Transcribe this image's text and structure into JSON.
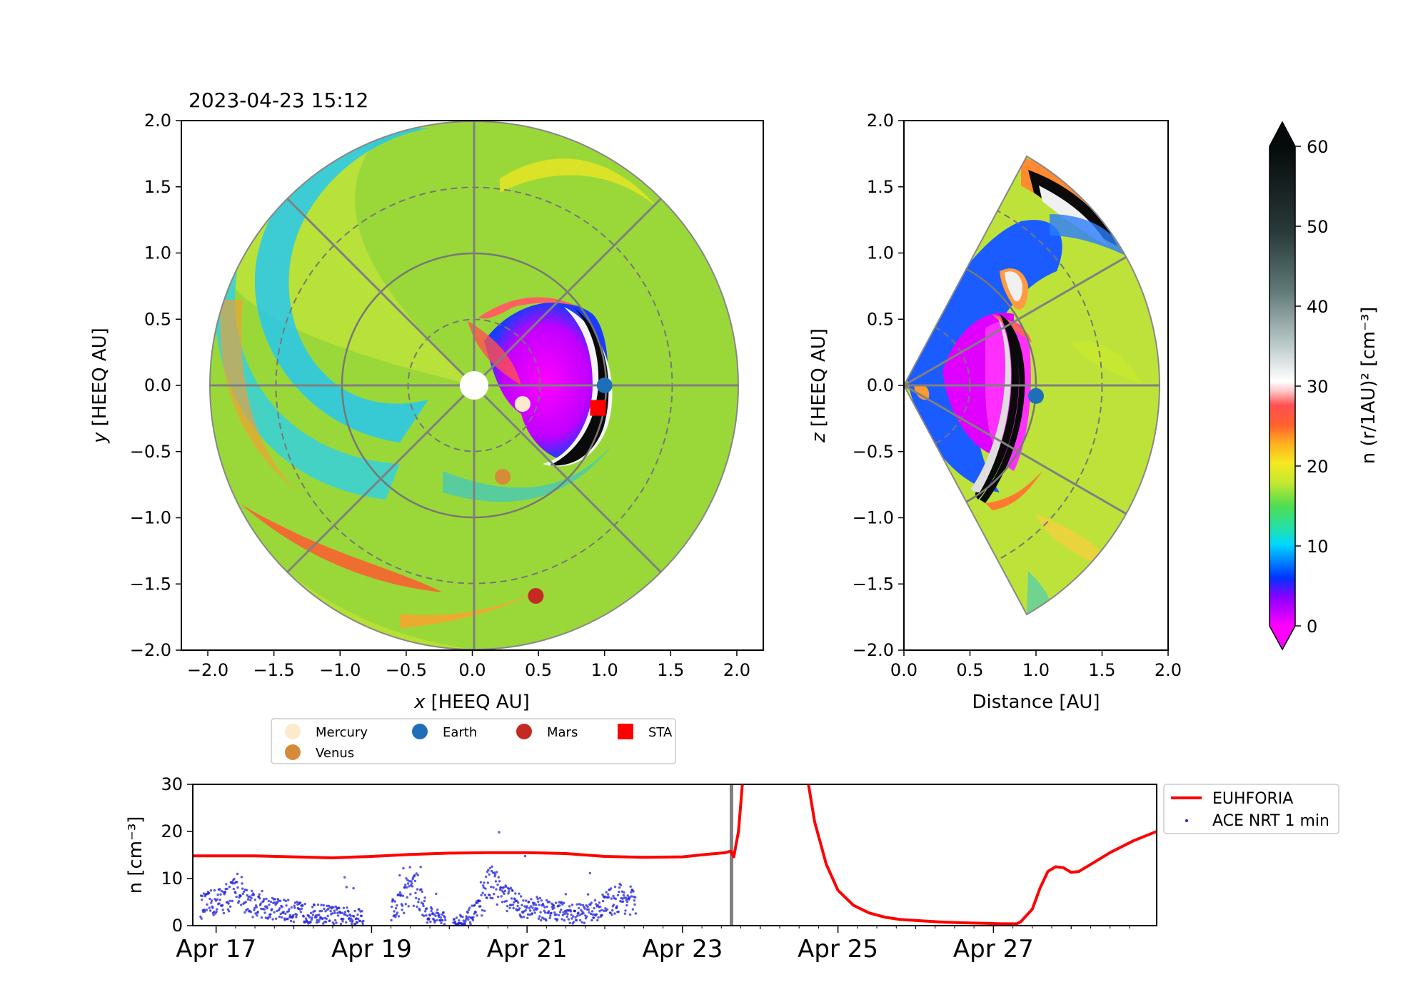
{
  "timestamp": "2023-04-23 15:12",
  "ecliptic_panel": {
    "xlabel_var": "x",
    "xlabel_unit": "[HEEQ AU]",
    "ylabel_var": "y",
    "ylabel_unit": "[HEEQ AU]",
    "xticks": [
      "−2.0",
      "−1.5",
      "−1.0",
      "−0.5",
      "0.0",
      "0.5",
      "1.0",
      "1.5",
      "2.0"
    ],
    "yticks": [
      "2.0",
      "1.5",
      "1.0",
      "0.5",
      "0.0",
      "−0.5",
      "−1.0",
      "−1.5",
      "−2.0"
    ]
  },
  "meridional_panel": {
    "xlabel": "Distance [AU]",
    "ylabel_var": "z",
    "ylabel_unit": "[HEEQ AU]",
    "xticks": [
      "0.0",
      "0.5",
      "1.0",
      "1.5",
      "2.0"
    ],
    "yticks": [
      "2.0",
      "1.5",
      "1.0",
      "0.5",
      "0.0",
      "−0.5",
      "−1.0",
      "−1.5",
      "−2.0"
    ]
  },
  "colorbar": {
    "label": "n (r/1AU)²  [cm⁻³]",
    "ticks": [
      "60",
      "50",
      "40",
      "30",
      "20",
      "10",
      "0"
    ]
  },
  "legend_bodies": {
    "items": [
      {
        "label": "Mercury",
        "color": "#fbeacb",
        "marker": "circle"
      },
      {
        "label": "Earth",
        "color": "#1f6fb8",
        "marker": "circle"
      },
      {
        "label": "Mars",
        "color": "#c42a22",
        "marker": "circle"
      },
      {
        "label": "STA",
        "color": "#ff0000",
        "marker": "square"
      },
      {
        "label": "Venus",
        "color": "#d58b3a",
        "marker": "circle"
      }
    ]
  },
  "timeseries": {
    "ylabel": "n [cm⁻³]",
    "yticks": [
      "30",
      "20",
      "10",
      "0"
    ],
    "xticks": [
      "Apr 17",
      "Apr 19",
      "Apr 21",
      "Apr 23",
      "Apr 25",
      "Apr 27"
    ],
    "legend": [
      {
        "label": "EUHFORIA",
        "color": "#ff0000"
      },
      {
        "label": "ACE NRT 1 min",
        "color": "#2020dd"
      }
    ]
  },
  "chart_data": [
    {
      "type": "heatmap",
      "description_panel": "ecliptic",
      "xlim": [
        -2.2,
        2.2
      ],
      "ylim": [
        -2.0,
        2.0
      ],
      "bodies": [
        {
          "name": "Mercury",
          "x": 0.38,
          "y": -0.14
        },
        {
          "name": "Venus",
          "x": 0.23,
          "y": -0.69
        },
        {
          "name": "Earth",
          "x": 1.0,
          "y": 0.0
        },
        {
          "name": "Mars",
          "x": 0.48,
          "y": -1.59
        },
        {
          "name": "STA",
          "x": 0.95,
          "y": -0.17
        }
      ]
    },
    {
      "type": "heatmap",
      "description_panel": "meridional",
      "xlim": [
        0.0,
        2.0
      ],
      "ylim": [
        -2.0,
        2.0
      ],
      "bodies": [
        {
          "name": "Earth",
          "x": 1.0,
          "y": -0.08
        }
      ]
    },
    {
      "type": "line",
      "description_panel": "timeseries",
      "x_unit": "days since Apr 17 00:00",
      "xlim": [
        -0.3,
        12.1
      ],
      "ylim": [
        0,
        30
      ],
      "time_marker": 6.63,
      "series": [
        {
          "name": "EUHFORIA",
          "x": [
            -0.3,
            0.5,
            1.0,
            1.5,
            2.0,
            2.5,
            3.0,
            3.5,
            4.0,
            4.5,
            5.0,
            5.5,
            6.0,
            6.3,
            6.55,
            6.62,
            6.66,
            6.72,
            6.78,
            7.6,
            7.7,
            7.85,
            8.0,
            8.2,
            8.4,
            8.6,
            8.8,
            9.0,
            9.3,
            9.6,
            9.9,
            10.1,
            10.3,
            10.35,
            10.5,
            10.6,
            10.7,
            10.8,
            10.9,
            11.0,
            11.1,
            11.3,
            11.5,
            11.8,
            12.1
          ],
          "values": [
            14.8,
            14.8,
            14.6,
            14.4,
            14.7,
            15.1,
            15.4,
            15.5,
            15.5,
            15.3,
            14.7,
            14.5,
            14.6,
            15.1,
            15.5,
            15.8,
            14.6,
            20.0,
            32.0,
            32.0,
            22.0,
            13.0,
            7.5,
            4.3,
            2.7,
            1.8,
            1.3,
            1.1,
            0.8,
            0.6,
            0.5,
            0.4,
            0.4,
            0.8,
            3.5,
            8.0,
            11.5,
            12.5,
            12.3,
            11.3,
            11.5,
            13.5,
            15.5,
            18.0,
            20.0
          ]
        },
        {
          "name": "ACE NRT 1 min",
          "x": [
            -0.2,
            0.0,
            0.2,
            0.3,
            0.4,
            0.6,
            0.8,
            1.0,
            1.2,
            1.4,
            1.6,
            1.8,
            2.0,
            2.2,
            2.4,
            2.5,
            2.6,
            2.7,
            2.8,
            3.0,
            3.2,
            3.4,
            3.5,
            3.6,
            3.7,
            3.8,
            4.0,
            4.2,
            4.4,
            4.6,
            4.8,
            5.0,
            5.2,
            5.4
          ],
          "values": [
            4.0,
            5.0,
            6.5,
            8.0,
            5.0,
            4.0,
            3.5,
            3.0,
            2.5,
            2.5,
            2.0,
            2.0,
            2.5,
            3.0,
            5.0,
            9.0,
            7.0,
            3.0,
            2.0,
            0.8,
            1.2,
            3.5,
            9.0,
            8.0,
            6.5,
            5.0,
            4.0,
            3.5,
            3.0,
            2.5,
            2.5,
            4.5,
            6.0,
            5.0
          ]
        }
      ]
    }
  ]
}
